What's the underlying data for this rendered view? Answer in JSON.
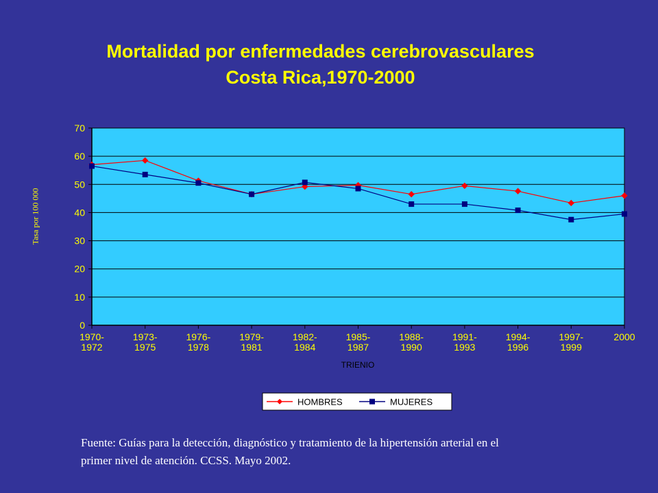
{
  "title_line1": "Mortalidad por enfermedades cerebrovasculares",
  "title_line2": "Costa Rica,1970-2000",
  "footer_line1": "Fuente:  Guías para la detección, diagnóstico y tratamiento de la hipertensión arterial  en el",
  "footer_line2": "primer nivel de atención.  CCSS.  Mayo 2002.",
  "colors": {
    "background": "#333399",
    "plot_area": "#33ccff",
    "title": "#ffff00",
    "axis_text": "#ffff00",
    "hombres": "#ff0000",
    "mujeres": "#000080"
  },
  "chart_data": {
    "type": "line",
    "title": "Mortalidad por enfermedades cerebrovasculares Costa Rica,1970-2000",
    "xlabel": "TRIENIO",
    "ylabel": "Tasa por 100 000",
    "ylim": [
      0,
      70
    ],
    "yticks": [
      "0",
      "10",
      "20",
      "30",
      "40",
      "50",
      "60",
      "70"
    ],
    "categories": [
      [
        "1970-",
        "1972"
      ],
      [
        "1973-",
        "1975"
      ],
      [
        "1976-",
        "1978"
      ],
      [
        "1979-",
        "1981"
      ],
      [
        "1982-",
        "1984"
      ],
      [
        "1985-",
        "1987"
      ],
      [
        "1988-",
        "1990"
      ],
      [
        "1991-",
        "1993"
      ],
      [
        "1994-",
        "1996"
      ],
      [
        "1997-",
        "1999"
      ],
      [
        "2000",
        ""
      ]
    ],
    "grid": true,
    "legend_position": "bottom",
    "series": [
      {
        "name": "HOMBRES",
        "marker": "diamond",
        "values": [
          57,
          58.5,
          51.3,
          46.5,
          49.2,
          49.7,
          46.5,
          49.5,
          47.6,
          43.4,
          46
        ]
      },
      {
        "name": "MUJERES",
        "marker": "square",
        "values": [
          56.5,
          53.5,
          50.5,
          46.5,
          50.7,
          48.5,
          43,
          43,
          40.8,
          37.5,
          39.5
        ]
      }
    ]
  }
}
